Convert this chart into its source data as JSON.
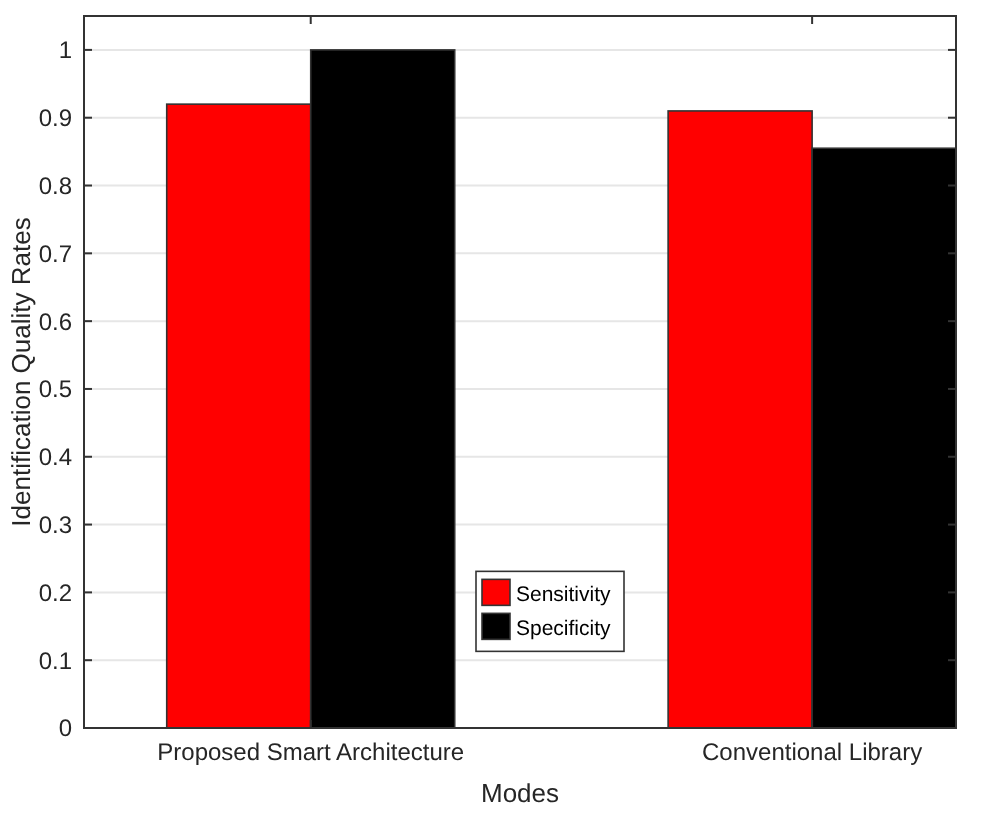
{
  "chart_data": {
    "type": "bar",
    "xlabel": "Modes",
    "ylabel": "Identification Quality Rates",
    "categories": [
      "Proposed Smart Architecture",
      "Conventional Library"
    ],
    "series": [
      {
        "name": "Sensitivity",
        "color": "#ff0000",
        "values": [
          0.92,
          0.91
        ]
      },
      {
        "name": "Specificity",
        "color": "#000000",
        "values": [
          1.0,
          0.855
        ]
      }
    ],
    "ylim": [
      0,
      1.05
    ],
    "yticks": [
      0,
      0.1,
      0.2,
      0.3,
      0.4,
      0.5,
      0.6,
      0.7,
      0.8,
      0.9,
      1
    ],
    "grid": "y",
    "legend": "center"
  }
}
